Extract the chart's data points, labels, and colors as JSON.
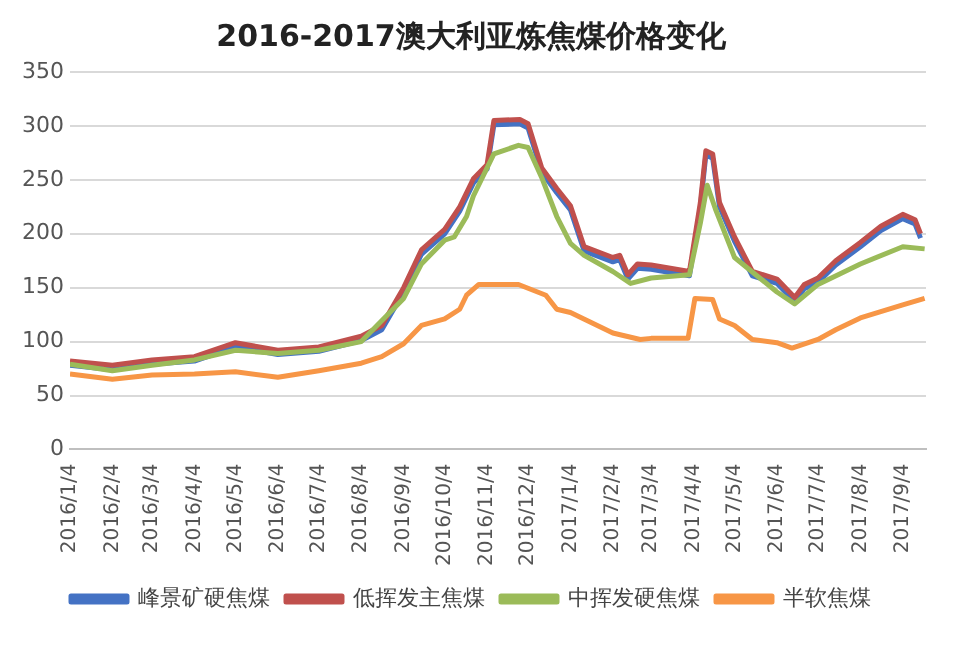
{
  "chart_data": {
    "type": "line",
    "title": "2016-2017澳大利亚炼焦煤价格变化",
    "xlim": [
      "2016-01-04",
      "2017-09-21"
    ],
    "xticks": [
      {
        "value": "2016-01-04",
        "label": "2016/1/4"
      },
      {
        "value": "2016-02-04",
        "label": "2016/2/4"
      },
      {
        "value": "2016-03-04",
        "label": "2016/3/4"
      },
      {
        "value": "2016-04-04",
        "label": "2016/4/4"
      },
      {
        "value": "2016-05-04",
        "label": "2016/5/4"
      },
      {
        "value": "2016-06-04",
        "label": "2016/6/4"
      },
      {
        "value": "2016-07-04",
        "label": "2016/7/4"
      },
      {
        "value": "2016-08-04",
        "label": "2016/8/4"
      },
      {
        "value": "2016-09-04",
        "label": "2016/9/4"
      },
      {
        "value": "2016-10-04",
        "label": "2016/10/4"
      },
      {
        "value": "2016-11-04",
        "label": "2016/11/4"
      },
      {
        "value": "2016-12-04",
        "label": "2016/12/4"
      },
      {
        "value": "2017-01-04",
        "label": "2017/1/4"
      },
      {
        "value": "2017-02-04",
        "label": "2017/2/4"
      },
      {
        "value": "2017-03-04",
        "label": "2017/3/4"
      },
      {
        "value": "2017-04-04",
        "label": "2017/4/4"
      },
      {
        "value": "2017-05-04",
        "label": "2017/5/4"
      },
      {
        "value": "2017-06-04",
        "label": "2017/6/4"
      },
      {
        "value": "2017-07-04",
        "label": "2017/7/4"
      },
      {
        "value": "2017-08-04",
        "label": "2017/8/4"
      },
      {
        "value": "2017-09-04",
        "label": "2017/9/4"
      }
    ],
    "ylim": [
      0,
      350
    ],
    "yticks": [
      0,
      50,
      100,
      150,
      200,
      250,
      300,
      350
    ],
    "grid": "y",
    "legend": "bottom",
    "marker": "none",
    "line_style": "solid",
    "series": [
      {
        "name": "峰景矿硬焦煤",
        "color": "#4472c4",
        "x": [
          "2016-01-04",
          "2016-02-04",
          "2016-03-04",
          "2016-04-04",
          "2016-05-04",
          "2016-06-04",
          "2016-07-04",
          "2016-08-04",
          "2016-08-19",
          "2016-09-04",
          "2016-09-17",
          "2016-10-04",
          "2016-10-15",
          "2016-10-25",
          "2016-11-04",
          "2016-11-09",
          "2016-11-28",
          "2016-12-04",
          "2016-12-14",
          "2016-12-25",
          "2017-01-04",
          "2017-01-14",
          "2017-02-04",
          "2017-02-09",
          "2017-02-15",
          "2017-02-22",
          "2017-03-04",
          "2017-04-01",
          "2017-04-09",
          "2017-04-13",
          "2017-04-18",
          "2017-04-23",
          "2017-05-04",
          "2017-05-17",
          "2017-06-04",
          "2017-06-17",
          "2017-06-24",
          "2017-07-04",
          "2017-07-17",
          "2017-08-04",
          "2017-08-19",
          "2017-09-04",
          "2017-09-13",
          "2017-09-17"
        ],
        "values": [
          78,
          74,
          79,
          82,
          95,
          88,
          91,
          101,
          111,
          146,
          181,
          200,
          221,
          247,
          260,
          301,
          302,
          298,
          257,
          238,
          222,
          184,
          174,
          176,
          158,
          168,
          167,
          161,
          225,
          273,
          270,
          225,
          193,
          161,
          154,
          137,
          149,
          155,
          171,
          188,
          203,
          214,
          209,
          196
        ]
      },
      {
        "name": "低挥发主焦煤",
        "color": "#c0504d",
        "x": [
          "2016-01-04",
          "2016-02-04",
          "2016-03-04",
          "2016-04-04",
          "2016-05-04",
          "2016-06-04",
          "2016-07-04",
          "2016-08-04",
          "2016-08-19",
          "2016-09-04",
          "2016-09-17",
          "2016-10-04",
          "2016-10-15",
          "2016-10-25",
          "2016-11-04",
          "2016-11-09",
          "2016-11-28",
          "2016-12-04",
          "2016-12-14",
          "2016-12-25",
          "2017-01-04",
          "2017-01-14",
          "2017-02-04",
          "2017-02-09",
          "2017-02-15",
          "2017-02-22",
          "2017-03-04",
          "2017-04-01",
          "2017-04-09",
          "2017-04-13",
          "2017-04-18",
          "2017-04-23",
          "2017-05-04",
          "2017-05-17",
          "2017-06-04",
          "2017-06-17",
          "2017-06-24",
          "2017-07-04",
          "2017-07-17",
          "2017-08-04",
          "2017-08-19",
          "2017-09-04",
          "2017-09-13",
          "2017-09-17"
        ],
        "values": [
          82,
          78,
          83,
          86,
          99,
          92,
          95,
          105,
          115,
          150,
          185,
          204,
          225,
          251,
          264,
          305,
          306,
          302,
          261,
          242,
          226,
          188,
          178,
          180,
          162,
          172,
          171,
          165,
          229,
          277,
          274,
          229,
          197,
          165,
          158,
          141,
          153,
          159,
          175,
          192,
          207,
          218,
          213,
          200
        ]
      },
      {
        "name": "中挥发硬焦煤",
        "color": "#9bbb59",
        "x": [
          "2016-01-04",
          "2016-02-04",
          "2016-03-04",
          "2016-04-04",
          "2016-05-04",
          "2016-06-04",
          "2016-07-04",
          "2016-08-04",
          "2016-09-04",
          "2016-09-17",
          "2016-10-04",
          "2016-10-11",
          "2016-10-20",
          "2016-10-25",
          "2016-11-09",
          "2016-11-27",
          "2016-12-04",
          "2016-12-14",
          "2016-12-25",
          "2017-01-04",
          "2017-01-14",
          "2017-02-04",
          "2017-02-17",
          "2017-03-04",
          "2017-04-01",
          "2017-04-09",
          "2017-04-14",
          "2017-04-20",
          "2017-05-04",
          "2017-06-04",
          "2017-06-17",
          "2017-07-04",
          "2017-08-04",
          "2017-09-04",
          "2017-09-20"
        ],
        "values": [
          79,
          73,
          78,
          83,
          92,
          89,
          92,
          100,
          140,
          172,
          194,
          197,
          216,
          235,
          274,
          282,
          280,
          252,
          216,
          191,
          180,
          165,
          154,
          159,
          162,
          210,
          245,
          223,
          178,
          146,
          135,
          153,
          172,
          188,
          186
        ]
      },
      {
        "name": "半软焦煤",
        "color": "#f79646",
        "x": [
          "2016-01-04",
          "2016-02-04",
          "2016-03-04",
          "2016-04-04",
          "2016-05-04",
          "2016-06-04",
          "2016-07-04",
          "2016-08-04",
          "2016-08-19",
          "2016-09-04",
          "2016-09-17",
          "2016-10-04",
          "2016-10-15",
          "2016-10-20",
          "2016-10-29",
          "2016-11-27",
          "2016-12-17",
          "2016-12-25",
          "2017-01-04",
          "2017-02-04",
          "2017-02-24",
          "2017-03-04",
          "2017-03-31",
          "2017-04-05",
          "2017-04-18",
          "2017-04-23",
          "2017-05-04",
          "2017-05-17",
          "2017-06-04",
          "2017-06-15",
          "2017-07-04",
          "2017-07-17",
          "2017-08-04",
          "2017-09-04",
          "2017-09-20"
        ],
        "values": [
          70,
          65,
          69,
          70,
          72,
          67,
          73,
          80,
          86,
          98,
          115,
          121,
          130,
          143,
          153,
          153,
          143,
          130,
          127,
          108,
          102,
          103,
          103,
          140,
          139,
          121,
          115,
          102,
          99,
          94,
          102,
          111,
          122,
          134,
          140
        ]
      }
    ]
  }
}
